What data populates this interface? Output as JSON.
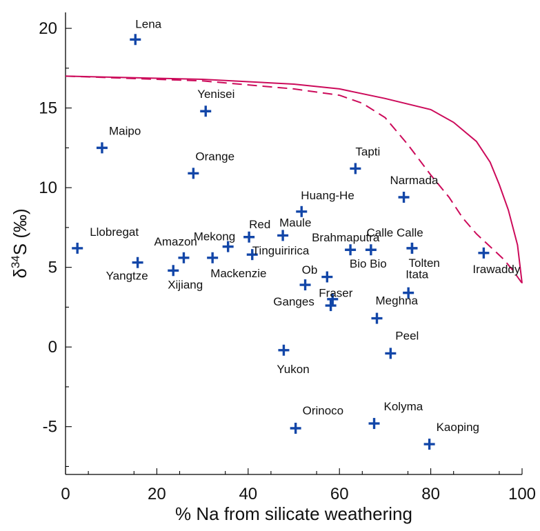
{
  "chart_data": {
    "type": "scatter",
    "title": "",
    "xlabel": "% Na from silicate weathering",
    "ylabel_main": "δ",
    "ylabel_sup": "34",
    "ylabel_rest": "S (‰)",
    "xlim": [
      0,
      100
    ],
    "ylim": [
      -8,
      21
    ],
    "xticks": [
      0,
      20,
      40,
      60,
      80,
      100
    ],
    "xtick_labels": [
      "0",
      "20",
      "40",
      "60",
      "80",
      "100"
    ],
    "yticks": [
      20,
      15,
      10,
      5,
      0,
      -5
    ],
    "ytick_labels": [
      "20",
      "15",
      "10",
      "5",
      "0",
      "-5"
    ],
    "grid": false,
    "marker_color": "#1246a8",
    "curve_color": "#cc0a5a",
    "points": [
      {
        "name": "Lena",
        "x": 15.3,
        "y": 19.3
      },
      {
        "name": "Yenisei",
        "x": 30.7,
        "y": 14.8
      },
      {
        "name": "Maipo",
        "x": 8.0,
        "y": 12.5
      },
      {
        "name": "Orange",
        "x": 28.0,
        "y": 10.9
      },
      {
        "name": "Tapti",
        "x": 63.5,
        "y": 11.2
      },
      {
        "name": "Narmada",
        "x": 74.1,
        "y": 9.4
      },
      {
        "name": "Huang-He",
        "x": 51.7,
        "y": 8.5
      },
      {
        "name": "Llobregat",
        "x": 2.6,
        "y": 6.2
      },
      {
        "name": "Mekong",
        "x": 35.6,
        "y": 6.3
      },
      {
        "name": "Red",
        "x": 40.2,
        "y": 6.9
      },
      {
        "name": "Maule",
        "x": 47.6,
        "y": 7.0
      },
      {
        "name": "Amazon",
        "x": 25.9,
        "y": 5.6
      },
      {
        "name": "Yangtze",
        "x": 15.8,
        "y": 5.3
      },
      {
        "name": "Xijiang",
        "x": 23.6,
        "y": 4.8
      },
      {
        "name": "Mackenzie",
        "x": 32.2,
        "y": 5.6
      },
      {
        "name": "Tinguiririca",
        "x": 40.9,
        "y": 5.8
      },
      {
        "name": "Brahmaputra",
        "x": 62.4,
        "y": 6.1
      },
      {
        "name": "Bio Bio",
        "x": 66.9,
        "y": 6.1
      },
      {
        "name": "Calle Calle",
        "x": 75.9,
        "y": 6.2
      },
      {
        "name": "Tolten",
        "x": 75.9,
        "y": 6.2
      },
      {
        "name": "Irawaddy",
        "x": 91.6,
        "y": 5.9
      },
      {
        "name": "Ob",
        "x": 52.5,
        "y": 3.9
      },
      {
        "name": "Fraser",
        "x": 57.3,
        "y": 4.4
      },
      {
        "name": "Ganges",
        "x": 58.5,
        "y": 3.0
      },
      {
        "name": "Ganges2",
        "x": 58.1,
        "y": 2.6
      },
      {
        "name": "Itata",
        "x": 75.1,
        "y": 3.4
      },
      {
        "name": "Meghna",
        "x": 68.2,
        "y": 1.8
      },
      {
        "name": "Yukon",
        "x": 47.8,
        "y": -0.2
      },
      {
        "name": "Peel",
        "x": 71.2,
        "y": -0.4
      },
      {
        "name": "Orinoco",
        "x": 50.4,
        "y": -5.1
      },
      {
        "name": "Kolyma",
        "x": 67.6,
        "y": -4.8
      },
      {
        "name": "Kaoping",
        "x": 79.7,
        "y": -6.1
      }
    ],
    "labels": [
      {
        "text": "Lena",
        "for": "Lena"
      },
      {
        "text": "Yenisei",
        "for": "Yenisei"
      },
      {
        "text": "Maipo",
        "for": "Maipo"
      },
      {
        "text": "Orange",
        "for": "Orange"
      },
      {
        "text": "Tapti",
        "for": "Tapti"
      },
      {
        "text": "Narmada",
        "for": "Narmada"
      },
      {
        "text": "Huang-He",
        "for": "Huang-He"
      },
      {
        "text": "Llobregat",
        "for": "Llobregat"
      },
      {
        "text": "Mekong",
        "for": "Mekong"
      },
      {
        "text": "Red",
        "for": "Red"
      },
      {
        "text": "Maule",
        "for": "Maule"
      },
      {
        "text": "Amazon",
        "for": "Amazon"
      },
      {
        "text": "Yangtze",
        "for": "Yangtze"
      },
      {
        "text": "Xijiang",
        "for": "Xijiang"
      },
      {
        "text": "Mackenzie",
        "for": "Mackenzie"
      },
      {
        "text": "Tinguiririca",
        "for": "Tinguiririca"
      },
      {
        "text": "Brahmaputra",
        "for": "Brahmaputra"
      },
      {
        "text": "Bio Bio",
        "for": "Bio Bio"
      },
      {
        "text": "Calle Calle",
        "for": "Calle Calle"
      },
      {
        "text": "Tolten",
        "for": "Tolten"
      },
      {
        "text": "Irawaddy",
        "for": "Irawaddy"
      },
      {
        "text": "Ob",
        "for": "Ob"
      },
      {
        "text": "Fraser",
        "for": "Fraser"
      },
      {
        "text": "Ganges",
        "for": "Ganges"
      },
      {
        "text": "Itata",
        "for": "Itata"
      },
      {
        "text": "Meghna",
        "for": "Meghna"
      },
      {
        "text": "Yukon",
        "for": "Yukon"
      },
      {
        "text": "Peel",
        "for": "Peel"
      },
      {
        "text": "Orinoco",
        "for": "Orinoco"
      },
      {
        "text": "Kolyma",
        "for": "Kolyma"
      },
      {
        "text": "Kaoping",
        "for": "Kaoping"
      }
    ],
    "curves": [
      {
        "style": "solid",
        "points": [
          [
            0,
            17.0
          ],
          [
            30,
            16.8
          ],
          [
            50,
            16.5
          ],
          [
            60,
            16.2
          ],
          [
            70,
            15.6
          ],
          [
            80,
            14.9
          ],
          [
            85,
            14.1
          ],
          [
            90,
            12.9
          ],
          [
            93,
            11.6
          ],
          [
            95,
            10.2
          ],
          [
            97,
            8.6
          ],
          [
            99,
            6.4
          ],
          [
            100,
            4.0
          ]
        ]
      },
      {
        "style": "dashed",
        "points": [
          [
            0,
            17.0
          ],
          [
            30,
            16.7
          ],
          [
            50,
            16.2
          ],
          [
            60,
            15.8
          ],
          [
            65,
            15.3
          ],
          [
            70,
            14.4
          ],
          [
            75,
            12.7
          ],
          [
            80,
            10.8
          ],
          [
            84,
            9.4
          ],
          [
            87,
            8.1
          ],
          [
            90,
            7.1
          ],
          [
            93,
            6.3
          ],
          [
            96,
            5.5
          ],
          [
            98,
            4.8
          ],
          [
            100,
            4.0
          ]
        ]
      }
    ]
  }
}
